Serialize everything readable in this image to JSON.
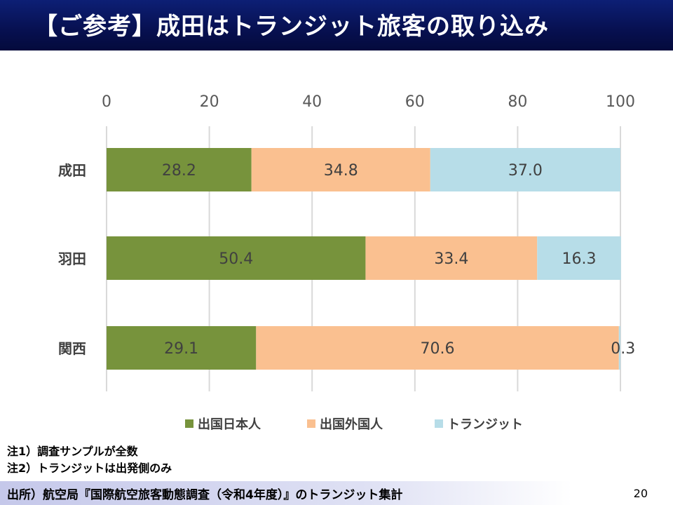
{
  "slide": {
    "title": "【ご参考】成田はトランジット旅客の取り込み",
    "notes": [
      "注1）調査サンプルが全数",
      "注2）トランジットは出発側のみ"
    ],
    "source": "出所）航空局『国際航空旅客動態調査（令和4年度）』のトランジット集計",
    "page_number": "20"
  },
  "chart_data": {
    "type": "bar",
    "orientation": "horizontal",
    "stacked": true,
    "categories": [
      "成田",
      "羽田",
      "関西"
    ],
    "series": [
      {
        "name": "出国日本人",
        "values": [
          28.2,
          50.4,
          29.1
        ],
        "labels": [
          "28.2",
          "50.4",
          "29.1"
        ],
        "color": "#77933c"
      },
      {
        "name": "出国外国人",
        "values": [
          34.8,
          33.4,
          70.6
        ],
        "labels": [
          "34.8",
          "33.4",
          "70.6"
        ],
        "color": "#fac090"
      },
      {
        "name": "トランジット",
        "values": [
          37.0,
          16.3,
          0.3
        ],
        "labels": [
          "37.0",
          "16.3",
          "0.3"
        ],
        "color": "#b7dde8"
      }
    ],
    "xlim": [
      0,
      100
    ],
    "xticks": [
      0,
      20,
      40,
      60,
      80,
      100
    ],
    "xtick_labels": [
      "0",
      "20",
      "40",
      "60",
      "80",
      "100"
    ],
    "axis_position": "top",
    "grid": true,
    "legend": "bottom"
  }
}
